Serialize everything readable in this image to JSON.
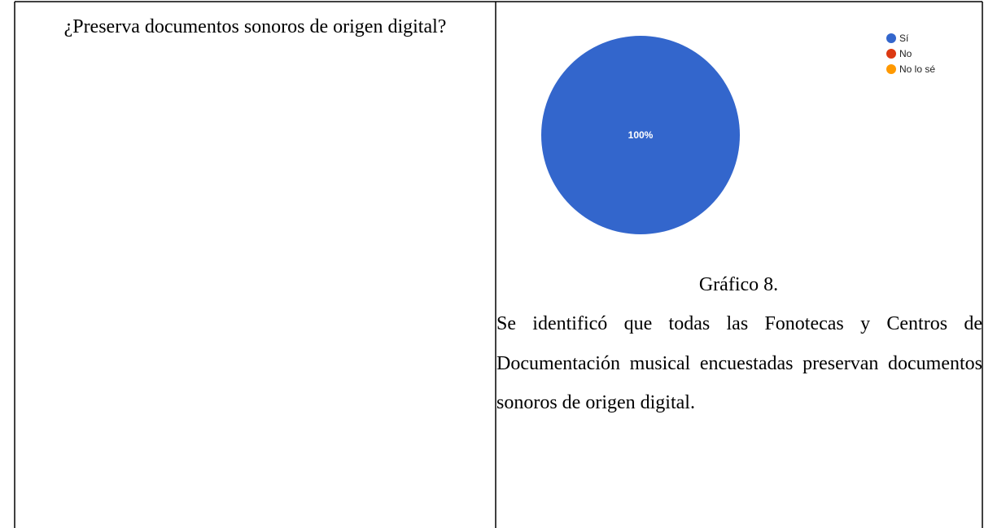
{
  "table": {
    "question": "¿Preserva documentos sonoros de origen digital?",
    "caption": "Gráfico 8.",
    "text": "Se identificó que todas las Fonotecas y Centros de Documentación musical encuestadas preservan documentos sonoros de origen digital."
  },
  "chart_data": {
    "type": "pie",
    "categories": [
      "Sí",
      "No",
      "No lo sé"
    ],
    "values": [
      100,
      0,
      0
    ],
    "value_labels": [
      "100%",
      null,
      null
    ],
    "colors": [
      "#3366cc",
      "#dc3912",
      "#ff9900"
    ]
  }
}
